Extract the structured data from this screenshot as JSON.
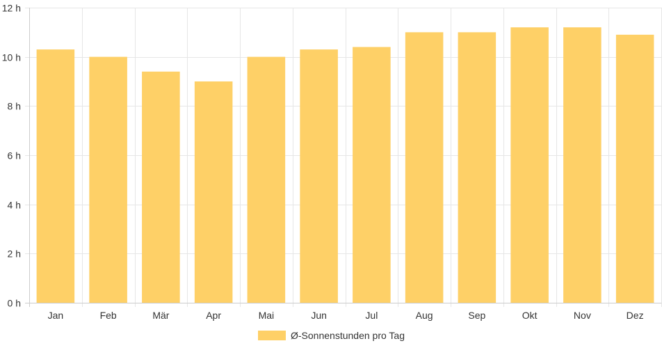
{
  "chart_data": {
    "type": "bar",
    "categories": [
      "Jan",
      "Feb",
      "Mär",
      "Apr",
      "Mai",
      "Jun",
      "Jul",
      "Aug",
      "Sep",
      "Okt",
      "Nov",
      "Dez"
    ],
    "series": [
      {
        "name": "Ø-Sonnenstunden pro Tag",
        "values": [
          10.3,
          10.0,
          9.4,
          9.0,
          10.0,
          10.3,
          10.4,
          11.0,
          11.0,
          11.2,
          11.2,
          10.9
        ]
      }
    ],
    "title": "",
    "xlabel": "",
    "ylabel": "",
    "ylim": [
      0,
      12
    ],
    "yticks": [
      0,
      2,
      4,
      6,
      8,
      10,
      12
    ],
    "ytick_labels": [
      "0 h",
      "2 h",
      "4 h",
      "6 h",
      "8 h",
      "10 h",
      "12 h"
    ],
    "grid": true,
    "legend_position": "bottom",
    "colors": {
      "bar": "#fed067",
      "grid": "#e6e6e6",
      "axis": "#cccccc",
      "text": "#333333"
    }
  }
}
